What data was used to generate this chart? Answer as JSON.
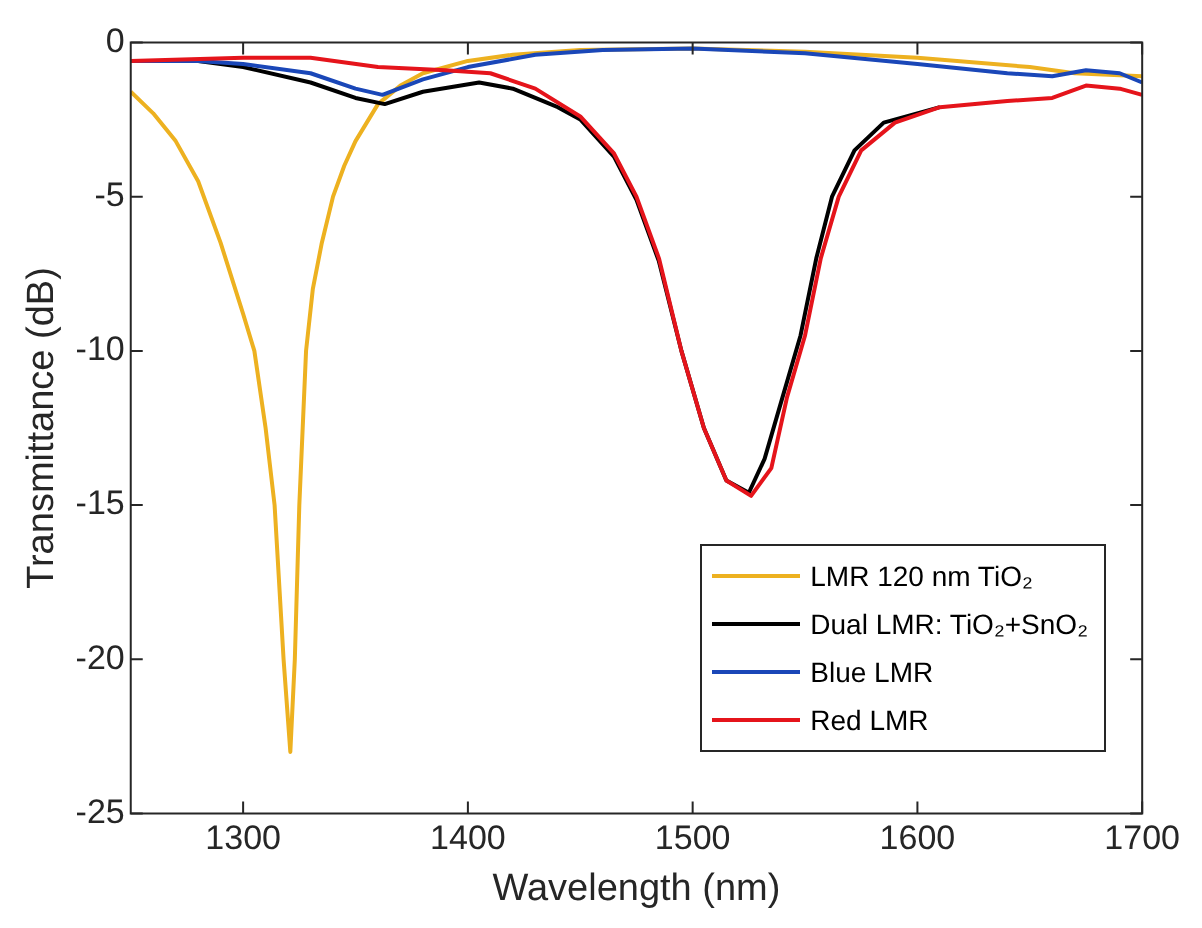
{
  "chart_data": {
    "type": "line",
    "xlabel": "Wavelength (nm)",
    "ylabel": "Transmittance (dB)",
    "xlim": [
      1250,
      1700
    ],
    "xticks": [
      1300,
      1400,
      1500,
      1600,
      1700
    ],
    "ylim": [
      -25,
      0
    ],
    "yticks": [
      -25,
      -20,
      -15,
      -10,
      -5,
      0
    ],
    "grid": false,
    "legend": "bottom right",
    "marker": "none",
    "line_style": "solid",
    "series": [
      {
        "name": "LMR 120 nm TiO₂",
        "color": "#edb120",
        "x": [
          1250,
          1260,
          1270,
          1280,
          1290,
          1300,
          1305,
          1310,
          1314,
          1318,
          1321,
          1323,
          1325,
          1328,
          1331,
          1335,
          1340,
          1345,
          1350,
          1360,
          1370,
          1380,
          1400,
          1420,
          1450,
          1500,
          1550,
          1600,
          1650,
          1670,
          1700
        ],
        "values": [
          -1.6,
          -2.3,
          -3.2,
          -4.5,
          -6.5,
          -8.8,
          -10,
          -12.5,
          -15,
          -20,
          -23,
          -20,
          -15,
          -10,
          -8,
          -6.5,
          -5,
          -4,
          -3.2,
          -2.0,
          -1.4,
          -1.0,
          -0.6,
          -0.4,
          -0.25,
          -0.2,
          -0.3,
          -0.5,
          -0.8,
          -1.0,
          -1.1
        ]
      },
      {
        "name": "Dual LMR: TiO₂+SnO₂",
        "color": "#000000",
        "x": [
          1250,
          1280,
          1300,
          1330,
          1350,
          1363,
          1380,
          1405,
          1420,
          1440,
          1450,
          1465,
          1475,
          1485,
          1495,
          1505,
          1515,
          1525,
          1532,
          1540,
          1548,
          1555,
          1562,
          1572,
          1585,
          1610
        ],
        "values": [
          -0.6,
          -0.6,
          -0.8,
          -1.3,
          -1.8,
          -2.0,
          -1.6,
          -1.3,
          -1.5,
          -2.1,
          -2.5,
          -3.7,
          -5.1,
          -7.1,
          -10,
          -12.5,
          -14.2,
          -14.6,
          -13.5,
          -11.5,
          -9.5,
          -7,
          -5,
          -3.5,
          -2.6,
          -2.1
        ]
      },
      {
        "name": "Blue LMR",
        "color": "#1a47b8",
        "x": [
          1250,
          1280,
          1300,
          1330,
          1350,
          1362,
          1380,
          1400,
          1430,
          1460,
          1500,
          1550,
          1600,
          1640,
          1660,
          1675,
          1690,
          1700
        ],
        "values": [
          -0.6,
          -0.6,
          -0.7,
          -1.0,
          -1.5,
          -1.7,
          -1.2,
          -0.8,
          -0.4,
          -0.25,
          -0.2,
          -0.35,
          -0.7,
          -1.0,
          -1.1,
          -0.9,
          -1.0,
          -1.3
        ]
      },
      {
        "name": "Red LMR",
        "color": "#e5141b",
        "x": [
          1250,
          1300,
          1330,
          1360,
          1390,
          1410,
          1430,
          1450,
          1465,
          1475,
          1485,
          1495,
          1505,
          1515,
          1526,
          1535,
          1542,
          1550,
          1557,
          1565,
          1575,
          1590,
          1610,
          1640,
          1660,
          1675,
          1690,
          1700
        ],
        "values": [
          -0.6,
          -0.5,
          -0.5,
          -0.8,
          -0.9,
          -1.0,
          -1.5,
          -2.4,
          -3.6,
          -5.0,
          -7,
          -10,
          -12.5,
          -14.2,
          -14.7,
          -13.8,
          -11.5,
          -9.5,
          -7,
          -5,
          -3.5,
          -2.6,
          -2.1,
          -1.9,
          -1.8,
          -1.4,
          -1.5,
          -1.7
        ]
      }
    ]
  }
}
